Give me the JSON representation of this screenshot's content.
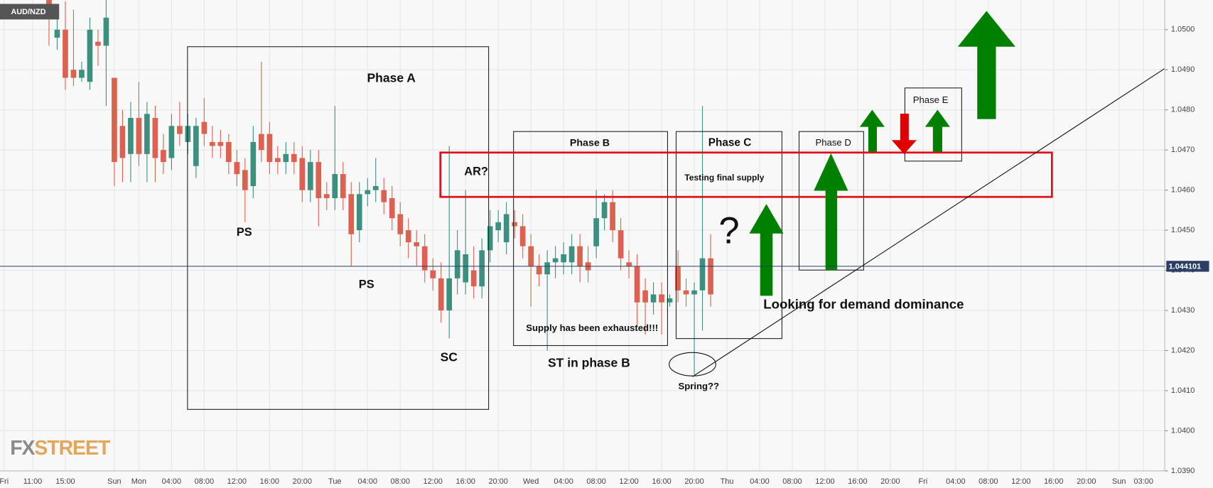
{
  "chart_data": {
    "type": "candlestick",
    "symbol": "AUD/NZD",
    "logo": [
      "FX",
      "STREET"
    ],
    "up_color": "#3d8f7f",
    "down_color": "#dd6150",
    "x": [
      6,
      7,
      8,
      9,
      10,
      11,
      12,
      13,
      14,
      15,
      16,
      17,
      18,
      19,
      20,
      21,
      22,
      23,
      24,
      25,
      26,
      27,
      28,
      29,
      30,
      31,
      32,
      33,
      34,
      35,
      36,
      37,
      38,
      39,
      40,
      41,
      42,
      43,
      44,
      45,
      46,
      47,
      48,
      49,
      50,
      51,
      52,
      53,
      54,
      55,
      56,
      57,
      58,
      59,
      60,
      61,
      62,
      63,
      64,
      65,
      66,
      67,
      68,
      69,
      70,
      71,
      72,
      73,
      74,
      75,
      76,
      77,
      78,
      79,
      80,
      81,
      82,
      83,
      84,
      85,
      86,
      87
    ],
    "open": [
      1.0515,
      1.0498,
      1.05,
      1.049,
      1.0488,
      1.0487,
      1.0497,
      1.0496,
      1.0488,
      1.0476,
      1.0469,
      1.0478,
      1.0469,
      1.0478,
      1.047,
      1.0468,
      1.0476,
      1.0472,
      1.0466,
      1.0477,
      1.0472,
      1.0472,
      1.0472,
      1.0467,
      1.0465,
      1.0461,
      1.0474,
      1.0474,
      1.0468,
      1.0467,
      1.0469,
      1.0468,
      1.046,
      1.0467,
      1.0459,
      1.0458,
      1.0464,
      1.0459,
      1.045,
      1.0459,
      1.046,
      1.046,
      1.0458,
      1.0454,
      1.045,
      1.0447,
      1.0446,
      1.044,
      1.0438,
      1.043,
      1.0438,
      1.0437,
      1.044,
      1.0436,
      1.0445,
      1.045,
      1.0447,
      1.0452,
      1.0451,
      1.0446,
      1.0441,
      1.0439,
      1.0442,
      1.0442,
      1.0442,
      1.0446,
      1.0442,
      1.0446,
      1.0453,
      1.0457,
      1.045,
      1.0442,
      1.0441,
      1.0435,
      1.0432,
      1.0434,
      1.0432,
      1.0441,
      1.0435,
      1.0434,
      1.0435,
      1.0443
    ],
    "high": [
      1.052,
      1.0503,
      1.0507,
      1.0505,
      1.0492,
      1.0503,
      1.05,
      1.051,
      1.0488,
      1.048,
      1.0482,
      1.0487,
      1.0482,
      1.0481,
      1.0474,
      1.0479,
      1.0482,
      1.0479,
      1.0478,
      1.0483,
      1.0476,
      1.0475,
      1.0474,
      1.047,
      1.0468,
      1.0476,
      1.0492,
      1.0477,
      1.0471,
      1.0472,
      1.0472,
      1.0471,
      1.047,
      1.047,
      1.0462,
      1.0481,
      1.0467,
      1.0462,
      1.0462,
      1.0463,
      1.0468,
      1.0463,
      1.0461,
      1.0457,
      1.0453,
      1.045,
      1.0449,
      1.0443,
      1.0442,
      1.0471,
      1.045,
      1.046,
      1.0446,
      1.0448,
      1.0455,
      1.0455,
      1.0457,
      1.0455,
      1.0454,
      1.0449,
      1.0444,
      1.0445,
      1.0446,
      1.0447,
      1.0449,
      1.0449,
      1.0446,
      1.046,
      1.0459,
      1.046,
      1.0453,
      1.0445,
      1.0444,
      1.0438,
      1.0437,
      1.0437,
      1.0434,
      1.0445,
      1.0438,
      1.0437,
      1.0481,
      1.0449
    ],
    "low": [
      1.0496,
      1.0495,
      1.0485,
      1.0486,
      1.0487,
      1.0485,
      1.0491,
      1.0481,
      1.0461,
      1.0462,
      1.0462,
      1.0466,
      1.0462,
      1.0462,
      1.0464,
      1.0465,
      1.0471,
      1.0469,
      1.0463,
      1.0471,
      1.0468,
      1.0468,
      1.0464,
      1.0461,
      1.0452,
      1.0458,
      1.0467,
      1.0464,
      1.0464,
      1.0464,
      1.0464,
      1.0457,
      1.0457,
      1.0451,
      1.0455,
      1.0455,
      1.0455,
      1.0441,
      1.0447,
      1.0456,
      1.0457,
      1.0454,
      1.045,
      1.0446,
      1.0443,
      1.0441,
      1.0437,
      1.0435,
      1.0427,
      1.0423,
      1.0434,
      1.0434,
      1.0433,
      1.0433,
      1.0442,
      1.0447,
      1.0444,
      1.0448,
      1.0443,
      1.0431,
      1.0436,
      1.042,
      1.0438,
      1.0439,
      1.0439,
      1.0437,
      1.0437,
      1.0443,
      1.045,
      1.0447,
      1.044,
      1.0438,
      1.0426,
      1.0424,
      1.0429,
      1.0424,
      1.0431,
      1.0432,
      1.0431,
      1.0414,
      1.0425,
      1.0431
    ],
    "close": [
      1.0505,
      1.05,
      1.0488,
      1.0488,
      1.049,
      1.05,
      1.0496,
      1.0503,
      1.0467,
      1.0468,
      1.0478,
      1.0469,
      1.0479,
      1.0468,
      1.0467,
      1.0476,
      1.0474,
      1.0476,
      1.0476,
      1.0474,
      1.0471,
      1.0471,
      1.0467,
      1.0464,
      1.046,
      1.0472,
      1.047,
      1.0467,
      1.0467,
      1.0469,
      1.0467,
      1.046,
      1.0467,
      1.0458,
      1.0458,
      1.0464,
      1.0458,
      1.0449,
      1.0459,
      1.046,
      1.0461,
      1.0457,
      1.0453,
      1.0449,
      1.0447,
      1.0446,
      1.044,
      1.0438,
      1.043,
      1.0438,
      1.0445,
      1.0444,
      1.0436,
      1.0445,
      1.0451,
      1.0452,
      1.0454,
      1.0451,
      1.0446,
      1.0441,
      1.0439,
      1.0442,
      1.0443,
      1.0444,
      1.0446,
      1.0441,
      1.044,
      1.0453,
      1.0457,
      1.045,
      1.0443,
      1.0441,
      1.0432,
      1.0432,
      1.0434,
      1.0432,
      1.0433,
      1.0435,
      1.0434,
      1.0435,
      1.0443,
      1.0434
    ],
    "current_price": 1.044101,
    "xlim": [
      0,
      142.6
    ],
    "ylim": [
      1.039,
      1.05074
    ],
    "xticks": [
      {
        "value": 0.5,
        "label": "Fri"
      },
      {
        "value": 4,
        "label": "11:00"
      },
      {
        "value": 8,
        "label": "15:00"
      },
      {
        "value": 14,
        "label": "Sun"
      },
      {
        "value": 17,
        "label": "Mon"
      },
      {
        "value": 21,
        "label": "04:00"
      },
      {
        "value": 25,
        "label": "08:00"
      },
      {
        "value": 29,
        "label": "12:00"
      },
      {
        "value": 33,
        "label": "16:00"
      },
      {
        "value": 37,
        "label": "20:00"
      },
      {
        "value": 41,
        "label": "Tue"
      },
      {
        "value": 45,
        "label": "04:00"
      },
      {
        "value": 49,
        "label": "08:00"
      },
      {
        "value": 53,
        "label": "12:00"
      },
      {
        "value": 57,
        "label": "16:00"
      },
      {
        "value": 61,
        "label": "20:00"
      },
      {
        "value": 65,
        "label": "Wed"
      },
      {
        "value": 69,
        "label": "04:00"
      },
      {
        "value": 73,
        "label": "08:00"
      },
      {
        "value": 77,
        "label": "12:00"
      },
      {
        "value": 81,
        "label": "16:00"
      },
      {
        "value": 85,
        "label": "20:00"
      },
      {
        "value": 89,
        "label": "Thu"
      },
      {
        "value": 93,
        "label": "04:00"
      },
      {
        "value": 97,
        "label": "08:00"
      },
      {
        "value": 101,
        "label": "12:00"
      },
      {
        "value": 105,
        "label": "16:00"
      },
      {
        "value": 109,
        "label": "20:00"
      },
      {
        "value": 113,
        "label": "Fri"
      },
      {
        "value": 117,
        "label": "04:00"
      },
      {
        "value": 121,
        "label": "08:00"
      },
      {
        "value": 125,
        "label": "12:00"
      },
      {
        "value": 129,
        "label": "16:00"
      },
      {
        "value": 133,
        "label": "20:00"
      },
      {
        "value": 137,
        "label": "Sun"
      },
      {
        "value": 140,
        "label": "03:00"
      }
    ],
    "yticks": [
      {
        "value": 1.039,
        "label": "1.0390"
      },
      {
        "value": 1.04,
        "label": "1.0400"
      },
      {
        "value": 1.041,
        "label": "1.0410"
      },
      {
        "value": 1.042,
        "label": "1.0420"
      },
      {
        "value": 1.043,
        "label": "1.0430"
      },
      {
        "value": 1.044,
        "label": "1.0440"
      },
      {
        "value": 1.045,
        "label": "1.0450"
      },
      {
        "value": 1.046,
        "label": "1.0460"
      },
      {
        "value": 1.047,
        "label": "1.0470"
      },
      {
        "value": 1.048,
        "label": "1.0480"
      },
      {
        "value": 1.049,
        "label": "1.0490"
      },
      {
        "value": 1.05,
        "label": "1.0500"
      }
    ],
    "grid": true,
    "annotations": [
      "Phase A",
      "Phase B",
      "Phase C",
      "Phase D",
      "Phase E",
      "PS",
      "PS",
      "SC",
      "AR?",
      "ST in phase B",
      "Supply has been exhausted!!!",
      "Testing final supply",
      "?",
      "Looking for demand dominance",
      "Spring??"
    ]
  }
}
